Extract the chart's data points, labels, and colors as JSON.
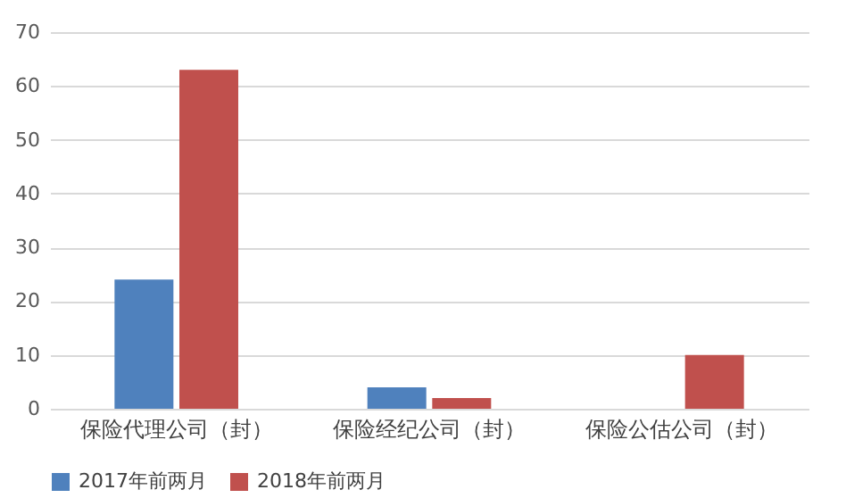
{
  "chart_data": {
    "type": "bar",
    "categories": [
      "保险代理公司（封）",
      "保险经纪公司（封）",
      "保险公估公司（封）"
    ],
    "series": [
      {
        "name": "2017年前两月",
        "color": "#4f81bd",
        "values": [
          24,
          4,
          0
        ]
      },
      {
        "name": "2018年前两月",
        "color": "#c0504d",
        "values": [
          63,
          2,
          10
        ]
      }
    ],
    "ylim": [
      0,
      70
    ],
    "yticks": [
      0,
      10,
      20,
      30,
      40,
      50,
      60,
      70
    ],
    "grid": "y",
    "legend": "bottom"
  }
}
